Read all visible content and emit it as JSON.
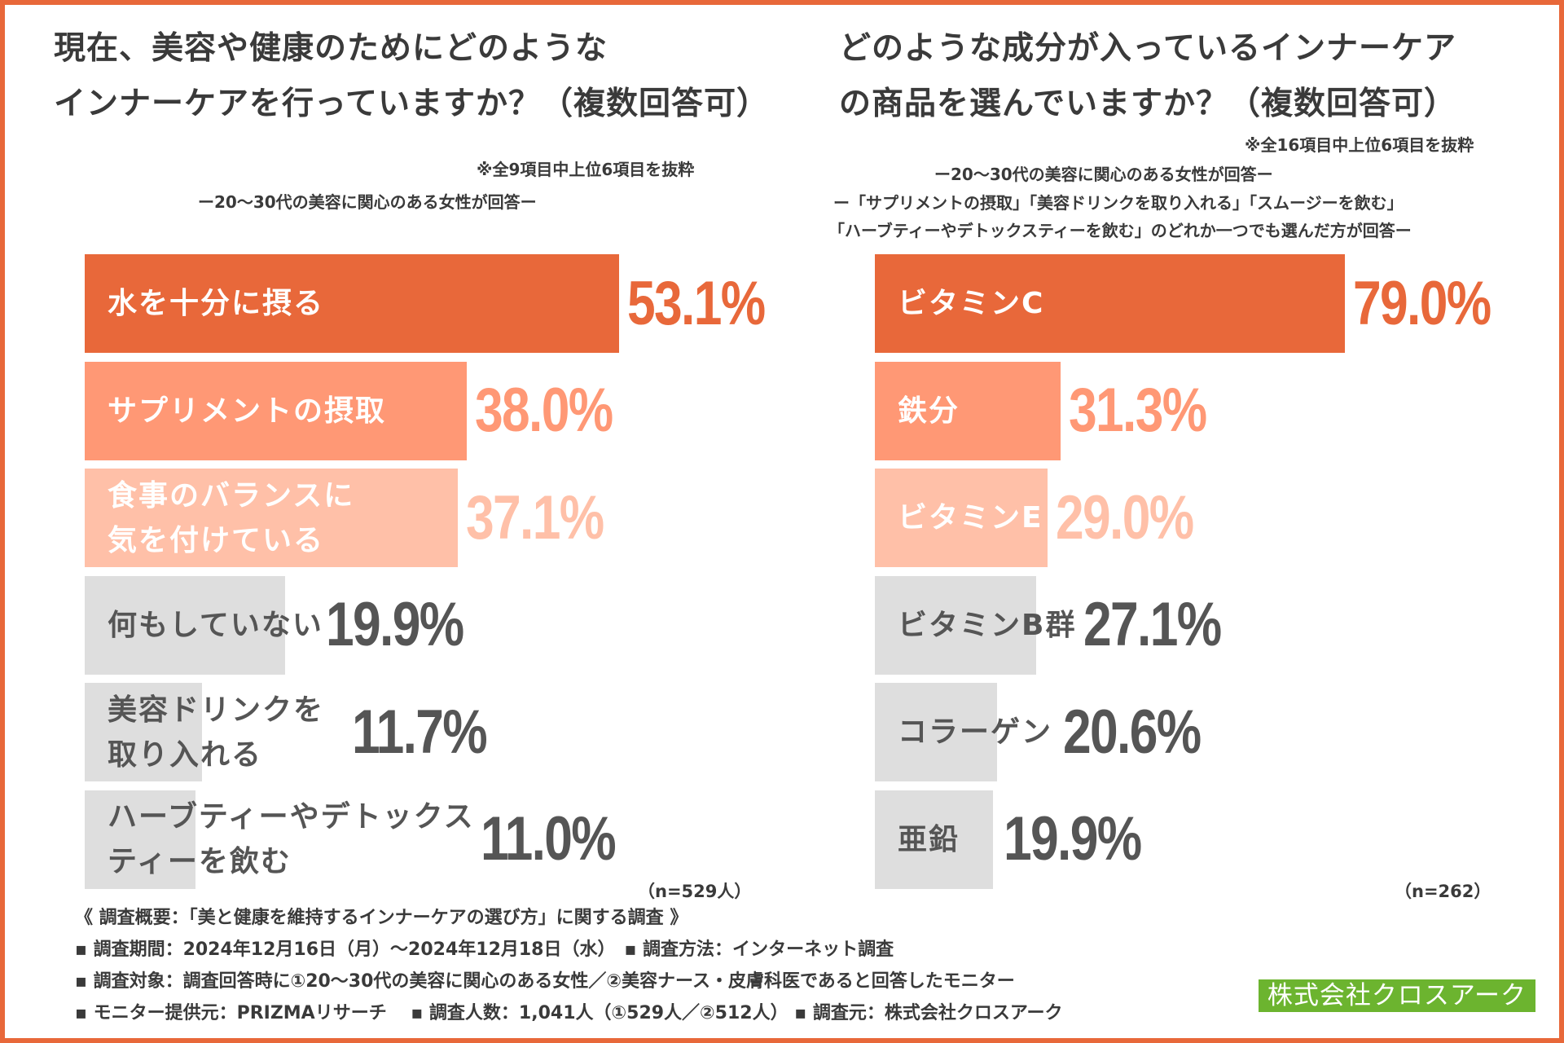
{
  "chart_data": [
    {
      "type": "bar",
      "orientation": "horizontal",
      "title_lines": [
        "現在、美容や健康のためにどのような",
        "インナーケアを行っていますか？（複数回答可）"
      ],
      "note": "※全9項目中上位6項目を抜粋",
      "subtitle": "ー20〜30代の美容に関心のある女性が回答ー",
      "categories": [
        [
          "水を十分に摂る"
        ],
        [
          "サプリメントの摂取"
        ],
        [
          "食事のバランスに",
          "気を付けている"
        ],
        [
          "何もしていない"
        ],
        [
          "美容ドリンクを",
          "取り入れる"
        ],
        [
          "ハーブティーやデトックス",
          "ティーを飲む"
        ]
      ],
      "values": [
        53.1,
        38.0,
        37.1,
        19.9,
        11.7,
        11.0
      ],
      "value_labels": [
        "53.1%",
        "38.0%",
        "37.1%",
        "19.9%",
        "11.7%",
        "11.0%"
      ],
      "unit": "%",
      "n_label": "（n=529人）",
      "xlim": [
        0,
        100
      ]
    },
    {
      "type": "bar",
      "orientation": "horizontal",
      "title_lines": [
        "どのような成分が入っているインナーケア",
        "の商品を選んでいますか？（複数回答可）"
      ],
      "note": "※全16項目中上位6項目を抜粋",
      "subtitle_lines": [
        "ー20〜30代の美容に関心のある女性が回答ー",
        "ー「サプリメントの摂取」「美容ドリンクを取り入れる」「スムージーを飲む」",
        "「ハーブティーやデトックスティーを飲む」のどれか一つでも選んだ方が回答ー"
      ],
      "categories": [
        [
          "ビタミンC"
        ],
        [
          "鉄分"
        ],
        [
          "ビタミンE"
        ],
        [
          "ビタミンB群"
        ],
        [
          "コラーゲン"
        ],
        [
          "亜鉛"
        ]
      ],
      "values": [
        79.0,
        31.3,
        29.0,
        27.1,
        20.6,
        19.9
      ],
      "value_labels": [
        "79.0%",
        "31.3%",
        "29.0%",
        "27.1%",
        "20.6%",
        "19.9%"
      ],
      "unit": "%",
      "n_label": "（n=262）",
      "xlim": [
        0,
        100
      ]
    }
  ],
  "colors": {
    "border": "#e8683a",
    "rank1": "#e8683a",
    "rank2": "#ff9875",
    "rank3": "#ffc0a8",
    "rest": "#dedede",
    "label_light": "#ffffff",
    "label_dark": "#555555",
    "value_rest": "#555555",
    "company_bg": "#6cb42f"
  },
  "footer": {
    "lines": [
      "《 調査概要：「美と健康を維持するインナーケアの選び方」に関する調査 》",
      "▪ 調査期間：2024年12月16日（月）〜2024年12月18日（水）　▪ 調査方法：インターネット調査",
      "▪ 調査対象：調査回答時に①20〜30代の美容に関心のある女性／②美容ナース・皮膚科医であると回答したモニター",
      "▪ モニター提供元：PRIZMAリサーチ　 ▪ 調査人数：1,041人（①529人／②512人） ▪ 調査元：株式会社クロスアーク"
    ]
  },
  "company": "株式会社クロスアーク"
}
